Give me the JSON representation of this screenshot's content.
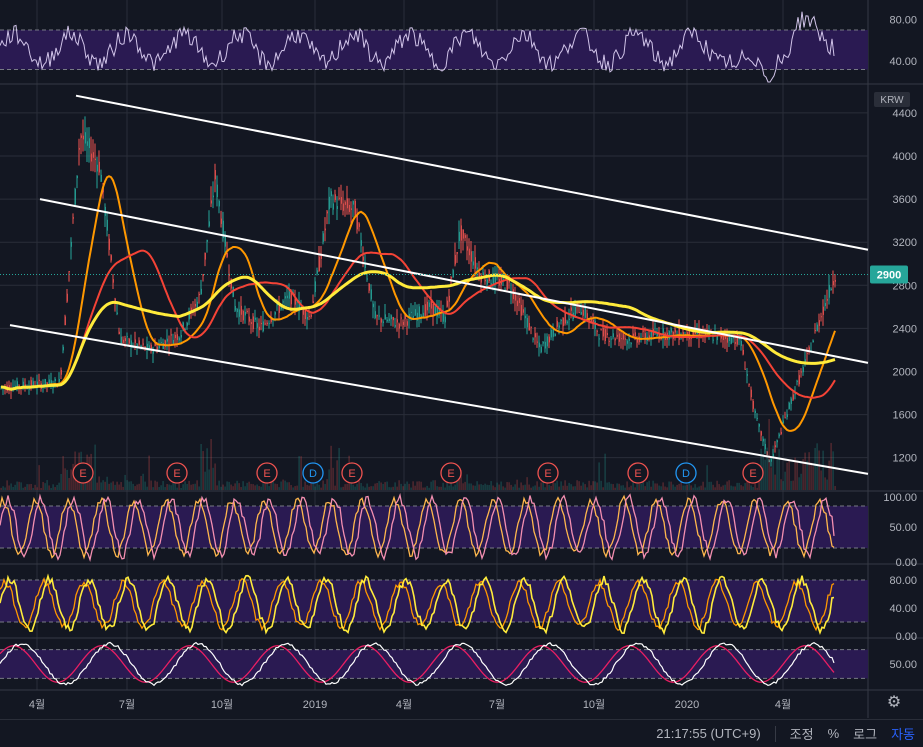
{
  "chart_data": {
    "type": "line",
    "currency_badge": "KRW",
    "last_price": "2900",
    "x_tick_labels": [
      "4월",
      "7월",
      "10월",
      "2019",
      "4월",
      "7월",
      "10월",
      "2020",
      "4월"
    ],
    "price_axis": {
      "ticks": [
        1200,
        1600,
        2000,
        2400,
        2800,
        3200,
        3600,
        4000,
        4400
      ],
      "range": [
        900,
        4650
      ]
    },
    "price_series_approx": [
      [
        0,
        1850
      ],
      [
        60,
        1900
      ],
      [
        80,
        4200
      ],
      [
        100,
        3900
      ],
      [
        120,
        2300
      ],
      [
        150,
        2200
      ],
      [
        180,
        2350
      ],
      [
        200,
        2700
      ],
      [
        215,
        3800
      ],
      [
        235,
        2600
      ],
      [
        260,
        2400
      ],
      [
        290,
        2700
      ],
      [
        310,
        2500
      ],
      [
        330,
        3600
      ],
      [
        355,
        3500
      ],
      [
        375,
        2500
      ],
      [
        400,
        2450
      ],
      [
        430,
        2600
      ],
      [
        445,
        2500
      ],
      [
        460,
        3300
      ],
      [
        480,
        2900
      ],
      [
        510,
        2800
      ],
      [
        540,
        2200
      ],
      [
        560,
        2450
      ],
      [
        580,
        2600
      ],
      [
        600,
        2350
      ],
      [
        630,
        2300
      ],
      [
        660,
        2350
      ],
      [
        700,
        2350
      ],
      [
        740,
        2300
      ],
      [
        755,
        1600
      ],
      [
        770,
        1150
      ],
      [
        790,
        1700
      ],
      [
        810,
        2200
      ],
      [
        820,
        2500
      ],
      [
        835,
        2900
      ]
    ],
    "trend_lines_price": [
      {
        "x1": 76,
        "y1": 4560,
        "x2": 868,
        "y2": 3130
      },
      {
        "x1": 40,
        "y1": 3600,
        "x2": 868,
        "y2": 2080
      },
      {
        "x1": 10,
        "y1": 2430,
        "x2": 868,
        "y2": 1050
      }
    ],
    "event_markers": [
      {
        "x": 83,
        "label": "E"
      },
      {
        "x": 177,
        "label": "E"
      },
      {
        "x": 267,
        "label": "E"
      },
      {
        "x": 313,
        "label": "D"
      },
      {
        "x": 352,
        "label": "E"
      },
      {
        "x": 451,
        "label": "E"
      },
      {
        "x": 548,
        "label": "E"
      },
      {
        "x": 638,
        "label": "E"
      },
      {
        "x": 686,
        "label": "D"
      },
      {
        "x": 753,
        "label": "E"
      }
    ],
    "top_oscillator": {
      "ticks": [
        "80.00",
        "40.00"
      ],
      "range": [
        20,
        95
      ],
      "band": [
        70,
        32
      ]
    },
    "oscillator_1": {
      "ticks": [
        "100.00",
        "50.00",
        "0.00"
      ],
      "range": [
        0,
        100
      ],
      "band": [
        80,
        20
      ]
    },
    "oscillator_2": {
      "ticks": [
        "80.00",
        "40.00",
        "0.00"
      ],
      "range": [
        0,
        100
      ],
      "band": [
        80,
        20
      ]
    },
    "oscillator_3": {
      "ticks": [
        "50.00"
      ],
      "range": [
        0,
        100
      ],
      "band": [
        80,
        20
      ]
    },
    "colors": {
      "background": "#131722",
      "grid": "#2a2e39",
      "band": "#2a1a52",
      "candle_up": "#26a69a",
      "candle_down": "#ef5350",
      "ma_short": "#ff9800",
      "ma_mid": "#f44336",
      "ma_long": "#ffeb3b",
      "trend": "#ffffff",
      "last_price_label": "#26a69a",
      "event_e": "#ef5350",
      "event_d": "#2196f3",
      "osc_line": "#f48fb1",
      "osc_signal": "#ffb74d",
      "osc2_line": "#ffeb3b",
      "osc3_line": "#ffffff",
      "osc3_signal": "#e91e63"
    }
  },
  "status_bar": {
    "time": "21:17:55 (UTC+9)",
    "adjust": "조정",
    "percent": "%",
    "log": "로그",
    "auto": "자동"
  }
}
